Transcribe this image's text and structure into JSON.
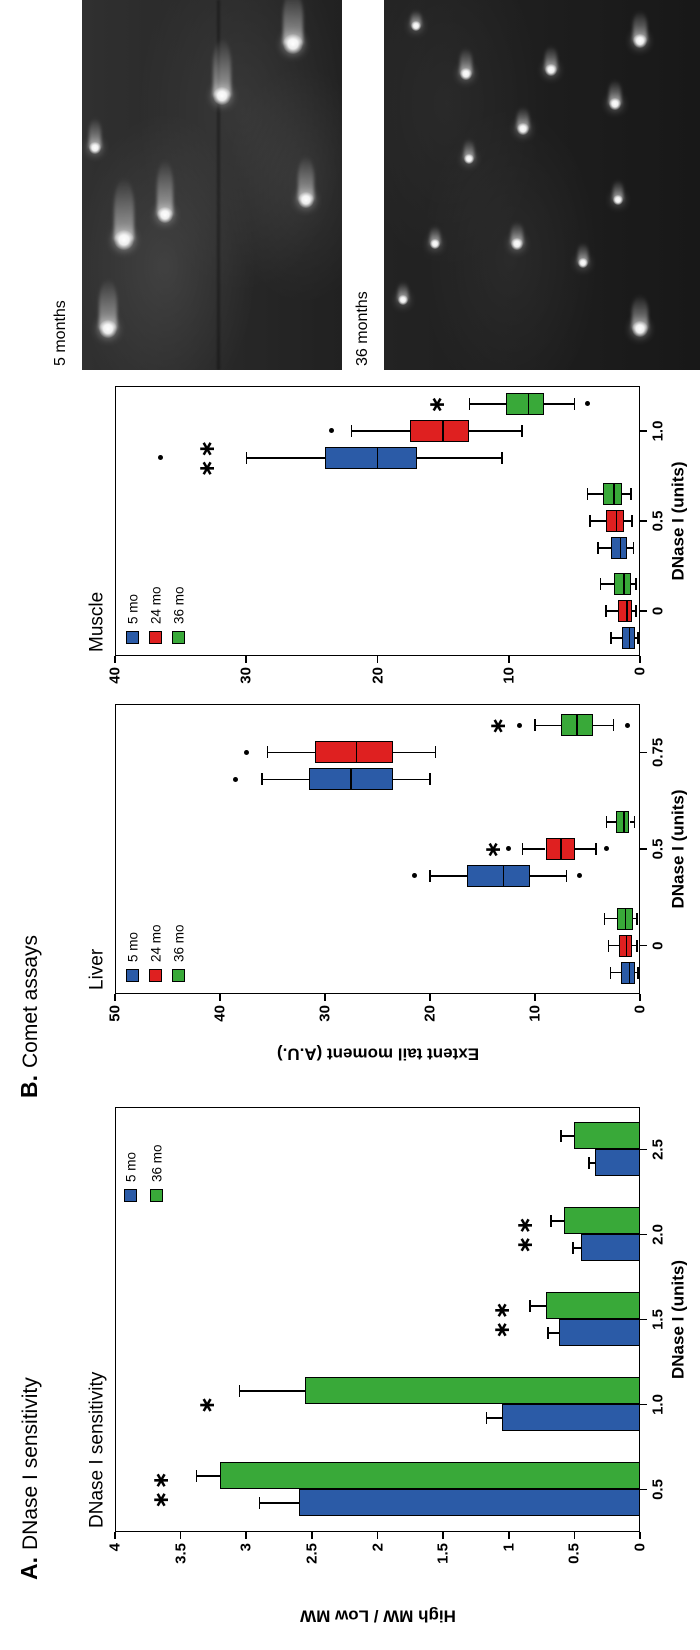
{
  "figure": {
    "background": "#ffffff",
    "panels": {
      "a": {
        "prefix": "A.",
        "title": "DNase I sensitivity"
      },
      "b": {
        "prefix": "B.",
        "title": "Comet assays"
      }
    },
    "colors": {
      "blue": "#2B5BA7",
      "red": "#DF2020",
      "green": "#39A939",
      "axis": "#000000",
      "micrograph_bg": "#222222"
    },
    "micrographs": [
      {
        "label": "5 months",
        "comets": [
          {
            "fx": 0.11,
            "fy": 0.1,
            "r": 9,
            "tail": 50
          },
          {
            "fx": 0.35,
            "fy": 0.16,
            "r": 10,
            "tail": 62
          },
          {
            "fx": 0.42,
            "fy": 0.32,
            "r": 8,
            "tail": 55
          },
          {
            "fx": 0.6,
            "fy": 0.05,
            "r": 6,
            "tail": 30
          },
          {
            "fx": 0.74,
            "fy": 0.54,
            "r": 9,
            "tail": 58
          },
          {
            "fx": 0.46,
            "fy": 0.86,
            "r": 8,
            "tail": 44
          },
          {
            "fx": 0.88,
            "fy": 0.81,
            "r": 10,
            "tail": 55
          }
        ]
      },
      {
        "label": "36 months",
        "comets": [
          {
            "fx": 0.8,
            "fy": 0.26,
            "r": 6,
            "tail": 26
          },
          {
            "fx": 0.81,
            "fy": 0.53,
            "r": 6,
            "tail": 24
          },
          {
            "fx": 0.89,
            "fy": 0.81,
            "r": 7,
            "tail": 30
          },
          {
            "fx": 0.72,
            "fy": 0.73,
            "r": 6,
            "tail": 24
          },
          {
            "fx": 0.65,
            "fy": 0.44,
            "r": 6,
            "tail": 22
          },
          {
            "fx": 0.57,
            "fy": 0.27,
            "r": 5,
            "tail": 20
          },
          {
            "fx": 0.34,
            "fy": 0.16,
            "r": 5,
            "tail": 18
          },
          {
            "fx": 0.34,
            "fy": 0.42,
            "r": 6,
            "tail": 22
          },
          {
            "fx": 0.29,
            "fy": 0.63,
            "r": 5,
            "tail": 20
          },
          {
            "fx": 0.46,
            "fy": 0.74,
            "r": 5,
            "tail": 20
          },
          {
            "fx": 0.11,
            "fy": 0.81,
            "r": 8,
            "tail": 34
          },
          {
            "fx": 0.19,
            "fy": 0.06,
            "r": 5,
            "tail": 18
          },
          {
            "fx": 0.93,
            "fy": 0.1,
            "r": 5,
            "tail": 16
          }
        ]
      }
    ]
  },
  "chart_data": [
    {
      "id": "dnase_sensitivity",
      "type": "bar",
      "title": "DNase I sensitivity",
      "xlabel": "DNase I (units)",
      "ylabel": "High MW / Low MW",
      "ylim": [
        0,
        4
      ],
      "yticks": [
        "0",
        "0.5",
        "1",
        "1.5",
        "2",
        "2.5",
        "3",
        "3.5",
        "4"
      ],
      "ytick_values": [
        0,
        0.5,
        1,
        1.5,
        2,
        2.5,
        3,
        3.5,
        4
      ],
      "categories": [
        "0.5",
        "1.0",
        "1.5",
        "2.0",
        "2.5"
      ],
      "series": [
        {
          "name": "5 mo",
          "color": "blue",
          "values": [
            2.6,
            1.05,
            0.62,
            0.45,
            0.34
          ],
          "errors": [
            0.3,
            0.12,
            0.08,
            0.06,
            0.05
          ]
        },
        {
          "name": "36 mo",
          "color": "green",
          "values": [
            3.2,
            2.55,
            0.72,
            0.58,
            0.5
          ],
          "errors": [
            0.18,
            0.5,
            0.12,
            0.1,
            0.1
          ]
        }
      ],
      "significance": [
        {
          "ci": 0,
          "mark": "**",
          "at": 3.65
        },
        {
          "ci": 1,
          "mark": "*",
          "at": 3.3
        },
        {
          "ci": 2,
          "mark": "**",
          "at": 1.05
        },
        {
          "ci": 3,
          "mark": "**",
          "at": 0.88
        }
      ],
      "legend_position": "top-right"
    },
    {
      "id": "comet_liver",
      "type": "box",
      "title": "Liver",
      "xlabel": "DNase I (units)",
      "ylabel": "Extent tail moment (A.U.)",
      "show_ylabel": true,
      "ylim": [
        0,
        50
      ],
      "yticks": [
        "0",
        "10",
        "20",
        "30",
        "40",
        "50"
      ],
      "ytick_values": [
        0,
        10,
        20,
        30,
        40,
        50
      ],
      "categories": [
        "0",
        "0.5",
        "0.75"
      ],
      "series": [
        {
          "name": "5 mo",
          "color": "blue",
          "boxes": [
            {
              "lo": 0.2,
              "q1": 0.5,
              "med": 1.0,
              "q3": 1.8,
              "hi": 2.8,
              "out": []
            },
            {
              "lo": 7.0,
              "q1": 10.5,
              "med": 13.0,
              "q3": 16.5,
              "hi": 20.0,
              "out": [
                5.8,
                21.5
              ]
            },
            {
              "lo": 20.0,
              "q1": 23.5,
              "med": 27.5,
              "q3": 31.5,
              "hi": 36.0,
              "out": [
                38.5
              ]
            }
          ]
        },
        {
          "name": "24 mo",
          "color": "red",
          "boxes": [
            {
              "l o": 0.3,
              "lo": 0.3,
              "q1": 0.8,
              "med": 1.3,
              "q3": 2.0,
              "hi": 3.0,
              "out": []
            },
            {
              "lo": 4.2,
              "q1": 6.2,
              "med": 7.5,
              "q3": 9.0,
              "hi": 11.2,
              "out": [
                3.2,
                12.5
              ]
            },
            {
              "lo": 19.5,
              "q1": 23.5,
              "med": 27.0,
              "q3": 31.0,
              "hi": 35.5,
              "out": [
                37.5
              ]
            }
          ]
        },
        {
          "name": "36 mo",
          "color": "green",
          "boxes": [
            {
              "lo": 0.3,
              "q1": 0.7,
              "med": 1.4,
              "q3": 2.2,
              "hi": 3.4,
              "out": []
            },
            {
              "lo": 0.5,
              "q1": 1.0,
              "med": 1.5,
              "q3": 2.3,
              "hi": 3.2,
              "out": []
            },
            {
              "lo": 2.5,
              "q1": 4.5,
              "med": 6.0,
              "q3": 7.5,
              "hi": 10.0,
              "out": [
                1.2,
                11.5
              ]
            }
          ]
        }
      ],
      "significance": [
        {
          "ci": 1,
          "series": 1,
          "mark": "*",
          "at": 14.0
        },
        {
          "ci": 2,
          "series": 2,
          "mark": "*",
          "at": 13.5
        }
      ],
      "legend_position": "top-left"
    },
    {
      "id": "comet_muscle",
      "type": "box",
      "title": "Muscle",
      "xlabel": "DNase I (units)",
      "ylabel": "Extent tail moment (A.U.)",
      "show_ylabel": false,
      "ylim": [
        0,
        40
      ],
      "yticks": [
        "0",
        "10",
        "20",
        "30",
        "40"
      ],
      "ytick_values": [
        0,
        10,
        20,
        30,
        40
      ],
      "categories": [
        "0",
        "0.5",
        "1.0"
      ],
      "series": [
        {
          "name": "5 mo",
          "color": "blue",
          "boxes": [
            {
              "lo": 0.15,
              "q1": 0.4,
              "med": 0.8,
              "q3": 1.4,
              "hi": 2.2,
              "out": []
            },
            {
              "lo": 0.5,
              "q1": 1.0,
              "med": 1.5,
              "q3": 2.2,
              "hi": 3.2,
              "out": []
            },
            {
              "lo": 10.5,
              "q1": 17.0,
              "med": 20.0,
              "q3": 24.0,
              "hi": 30.0,
              "out": [
                36.5
              ]
            }
          ]
        },
        {
          "name": "24 mo",
          "color": "red",
          "boxes": [
            {
              "lo": 0.3,
              "q1": 0.6,
              "med": 1.0,
              "q3": 1.7,
              "hi": 2.6,
              "out": []
            },
            {
              "lo": 0.6,
              "q1": 1.2,
              "med": 1.8,
              "q3": 2.6,
              "hi": 3.8,
              "out": []
            },
            {
              "lo": 9.0,
              "q1": 13.0,
              "med": 15.0,
              "q3": 17.5,
              "hi": 22.0,
              "out": [
                23.5
              ]
            }
          ]
        },
        {
          "name": "36 mo",
          "color": "green",
          "boxes": [
            {
              "lo": 0.3,
              "q1": 0.7,
              "med": 1.2,
              "q3": 2.0,
              "hi": 3.0,
              "out": []
            },
            {
              "lo": 0.7,
              "q1": 1.4,
              "med": 2.0,
              "q3": 2.8,
              "hi": 4.0,
              "out": []
            },
            {
              "lo": 5.0,
              "q1": 7.3,
              "med": 8.5,
              "q3": 10.2,
              "hi": 13.0,
              "out": [
                4.0
              ]
            }
          ]
        }
      ],
      "significance": [
        {
          "ci": 2,
          "series": 0,
          "mark": "**",
          "at": 33.0
        },
        {
          "ci": 2,
          "series": 2,
          "mark": "*",
          "at": 15.5
        }
      ],
      "legend_position": "top-left"
    }
  ]
}
